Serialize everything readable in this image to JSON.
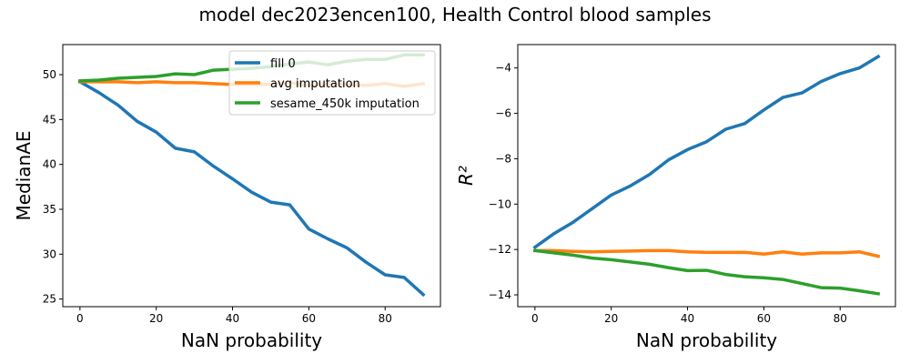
{
  "suptitle": "model dec2023encen100, Health Control blood samples",
  "colors": {
    "fill0": "#1f77b4",
    "avg": "#ff7f0e",
    "sesame": "#2ca02c"
  },
  "chart_data": [
    {
      "type": "line",
      "xlabel": "NaN probability",
      "ylabel": "MedianAE",
      "xlim": [
        -4.5,
        94.5
      ],
      "ylim": [
        24.15,
        53.35
      ],
      "xticks": [
        0,
        20,
        40,
        60,
        80
      ],
      "yticks": [
        25,
        30,
        35,
        40,
        45,
        50
      ],
      "legend": "top-right",
      "x": [
        0,
        5,
        10,
        15,
        20,
        25,
        30,
        35,
        40,
        45,
        50,
        55,
        60,
        65,
        70,
        75,
        80,
        85,
        90
      ],
      "series": [
        {
          "name": "fill 0",
          "color": "#1f77b4",
          "values": [
            49.2,
            48.0,
            46.6,
            44.8,
            43.6,
            41.8,
            41.4,
            39.8,
            38.4,
            36.9,
            35.8,
            35.5,
            32.8,
            31.7,
            30.7,
            29.1,
            27.7,
            27.4,
            25.5
          ]
        },
        {
          "name": "avg imputation",
          "color": "#ff7f0e",
          "values": [
            49.2,
            49.2,
            49.2,
            49.1,
            49.2,
            49.1,
            49.1,
            49.0,
            48.9,
            48.9,
            48.9,
            49.1,
            48.8,
            49.0,
            48.9,
            48.8,
            49.0,
            48.7,
            49.0
          ]
        },
        {
          "name": "sesame_450k imputation",
          "color": "#2ca02c",
          "values": [
            49.3,
            49.4,
            49.6,
            49.7,
            49.8,
            50.1,
            50.0,
            50.5,
            50.6,
            50.7,
            50.9,
            51.2,
            51.4,
            51.1,
            51.5,
            51.7,
            51.7,
            52.2,
            52.2
          ]
        }
      ]
    },
    {
      "type": "line",
      "xlabel": "NaN probability",
      "ylabel": "R²",
      "xlim": [
        -4.5,
        94.5
      ],
      "ylim": [
        -14.52,
        -2.97
      ],
      "xticks": [
        0,
        20,
        40,
        60,
        80
      ],
      "yticks": [
        -14,
        -12,
        -10,
        -8,
        -6,
        -4
      ],
      "x": [
        0,
        5,
        10,
        15,
        20,
        25,
        30,
        35,
        40,
        45,
        50,
        55,
        60,
        65,
        70,
        75,
        80,
        85,
        90
      ],
      "series": [
        {
          "name": "fill 0",
          "color": "#1f77b4",
          "values": [
            -11.9,
            -11.3,
            -10.8,
            -10.2,
            -9.6,
            -9.2,
            -8.7,
            -8.05,
            -7.6,
            -7.25,
            -6.7,
            -6.45,
            -5.85,
            -5.3,
            -5.1,
            -4.6,
            -4.25,
            -4.0,
            -3.5
          ]
        },
        {
          "name": "avg imputation",
          "color": "#ff7f0e",
          "values": [
            -12.05,
            -12.05,
            -12.08,
            -12.1,
            -12.08,
            -12.07,
            -12.05,
            -12.05,
            -12.1,
            -12.13,
            -12.13,
            -12.12,
            -12.2,
            -12.1,
            -12.2,
            -12.15,
            -12.15,
            -12.1,
            -12.3
          ]
        },
        {
          "name": "sesame_450k imputation",
          "color": "#2ca02c",
          "values": [
            -12.05,
            -12.15,
            -12.25,
            -12.38,
            -12.45,
            -12.55,
            -12.65,
            -12.8,
            -12.93,
            -12.92,
            -13.1,
            -13.2,
            -13.25,
            -13.32,
            -13.5,
            -13.68,
            -13.7,
            -13.82,
            -13.95
          ]
        }
      ]
    }
  ]
}
